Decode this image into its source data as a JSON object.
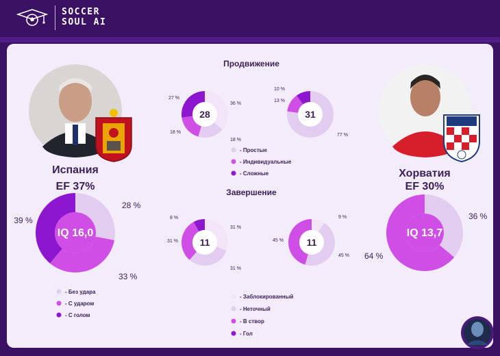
{
  "brand": {
    "line1": "SOCCER",
    "line2": "SOUL AI"
  },
  "colors": {
    "light": "#e2cdf1",
    "mid": "#cf4fe6",
    "dark": "#8d17cf",
    "pale": "#f3e4f8",
    "text": "#3b1f55"
  },
  "teams": {
    "left": {
      "name": "Испания",
      "ef": "EF  37%",
      "iq": "IQ 16,0"
    },
    "right": {
      "name": "Хорватия",
      "ef": "EF  30%",
      "iq": "IQ 13,7"
    }
  },
  "sections": {
    "progress": "Продвижение",
    "finish": "Завершение"
  },
  "chart_data": [
    {
      "type": "pie",
      "id": "left-big",
      "center": "IQ 16,0",
      "slices": [
        {
          "label": "Без удара",
          "value": 28,
          "text": "28 %"
        },
        {
          "label": "С ударом",
          "value": 33,
          "text": "33 %"
        },
        {
          "label": "С голом",
          "value": 39,
          "text": "39 %"
        }
      ],
      "legend": [
        "- Без удара",
        "- С ударом",
        "- С голом"
      ]
    },
    {
      "type": "pie",
      "id": "right-big",
      "center": "IQ 13,7",
      "slices": [
        {
          "label": "Без удара",
          "value": 36,
          "text": "36 %"
        },
        {
          "label": "С ударом",
          "value": 64,
          "text": "64 %"
        }
      ]
    },
    {
      "type": "pie",
      "id": "prog-left",
      "center": "28",
      "slices": [
        {
          "label": "Простые",
          "value": 36,
          "text": "36 %"
        },
        {
          "label": "Простые",
          "value": 18,
          "text": "18 %"
        },
        {
          "label": "Индивидуальные",
          "value": 18,
          "text": "18 %"
        },
        {
          "label": "Сложные",
          "value": 27,
          "text": "27 %"
        }
      ]
    },
    {
      "type": "pie",
      "id": "prog-right",
      "center": "31",
      "slices": [
        {
          "label": "Простые",
          "value": 77,
          "text": "77 %"
        },
        {
          "label": "Индивидуальные",
          "value": 13,
          "text": "13 %"
        },
        {
          "label": "Сложные",
          "value": 10,
          "text": "10 %"
        }
      ],
      "legend": [
        "- Простые",
        "- Индивидуальные",
        "- Сложные"
      ]
    },
    {
      "type": "pie",
      "id": "fin-left",
      "center": "11",
      "slices": [
        {
          "label": "Заблокированный",
          "value": 31,
          "text": "31 %"
        },
        {
          "label": "Неточный",
          "value": 31,
          "text": "31 %"
        },
        {
          "label": "В створ",
          "value": 31,
          "text": "31 %"
        },
        {
          "label": "Гол",
          "value": 8,
          "text": "8 %"
        }
      ]
    },
    {
      "type": "pie",
      "id": "fin-right",
      "center": "11",
      "slices": [
        {
          "label": "Заблокированный",
          "value": 9,
          "text": "9 %"
        },
        {
          "label": "Неточный",
          "value": 45,
          "text": "45 %"
        },
        {
          "label": "В створ",
          "value": 45,
          "text": "45 %"
        }
      ],
      "legend": [
        "- Заблокированный",
        "- Неточный",
        "- В створ",
        "- Гол"
      ]
    }
  ]
}
